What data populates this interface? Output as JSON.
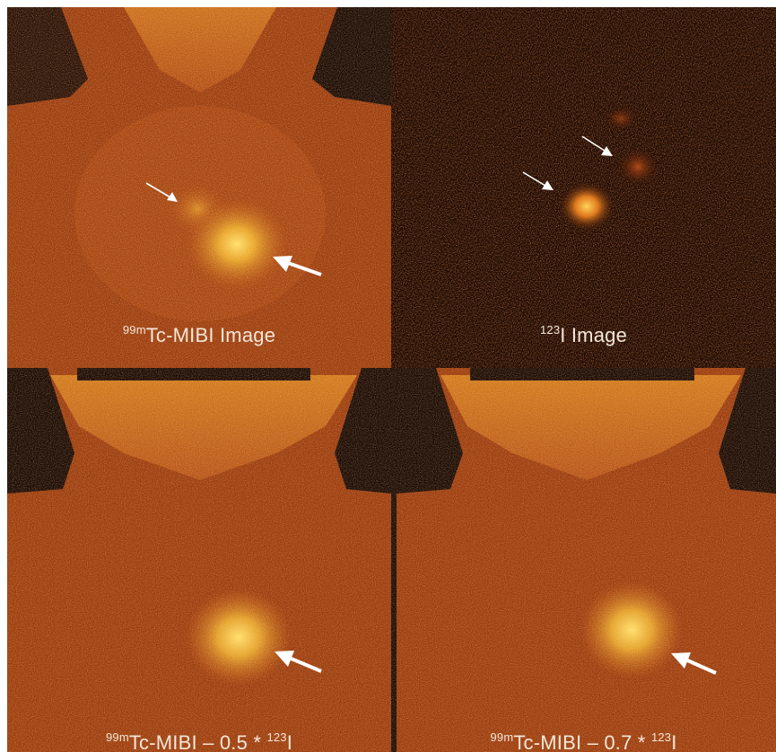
{
  "colors": {
    "background": "#ffffff",
    "tissue_dark": "#8a3108",
    "tissue_mid": "#b24c14",
    "uptake_hot": "#f5c43a",
    "void": "#1a0a04",
    "arrow": "#ffffff",
    "caption_text": "#f4e6d8"
  },
  "panels": [
    {
      "id": "tc-mibi",
      "caption": {
        "iso": "99m",
        "head": "Tc-MIBI Image",
        "mid": "",
        "iso2": "",
        "tail": ""
      },
      "markers": {
        "large_arrow": "present",
        "small_arrows": 1
      }
    },
    {
      "id": "i123",
      "caption": {
        "iso": "123",
        "head": "I Image",
        "mid": "",
        "iso2": "",
        "tail": ""
      },
      "markers": {
        "large_arrow": "absent",
        "small_arrows": 2
      }
    },
    {
      "id": "sub-05",
      "caption": {
        "iso": "99m",
        "head": "Tc-MIBI",
        "mid": " – 0.5 * ",
        "iso2": "123",
        "tail": "I"
      },
      "markers": {
        "large_arrow": "present",
        "small_arrows": 0
      }
    },
    {
      "id": "sub-07",
      "caption": {
        "iso": "99m",
        "head": "Tc-MIBI",
        "mid": " – 0.7 * ",
        "iso2": "123",
        "tail": "I"
      },
      "markers": {
        "large_arrow": "present",
        "small_arrows": 0
      }
    }
  ]
}
